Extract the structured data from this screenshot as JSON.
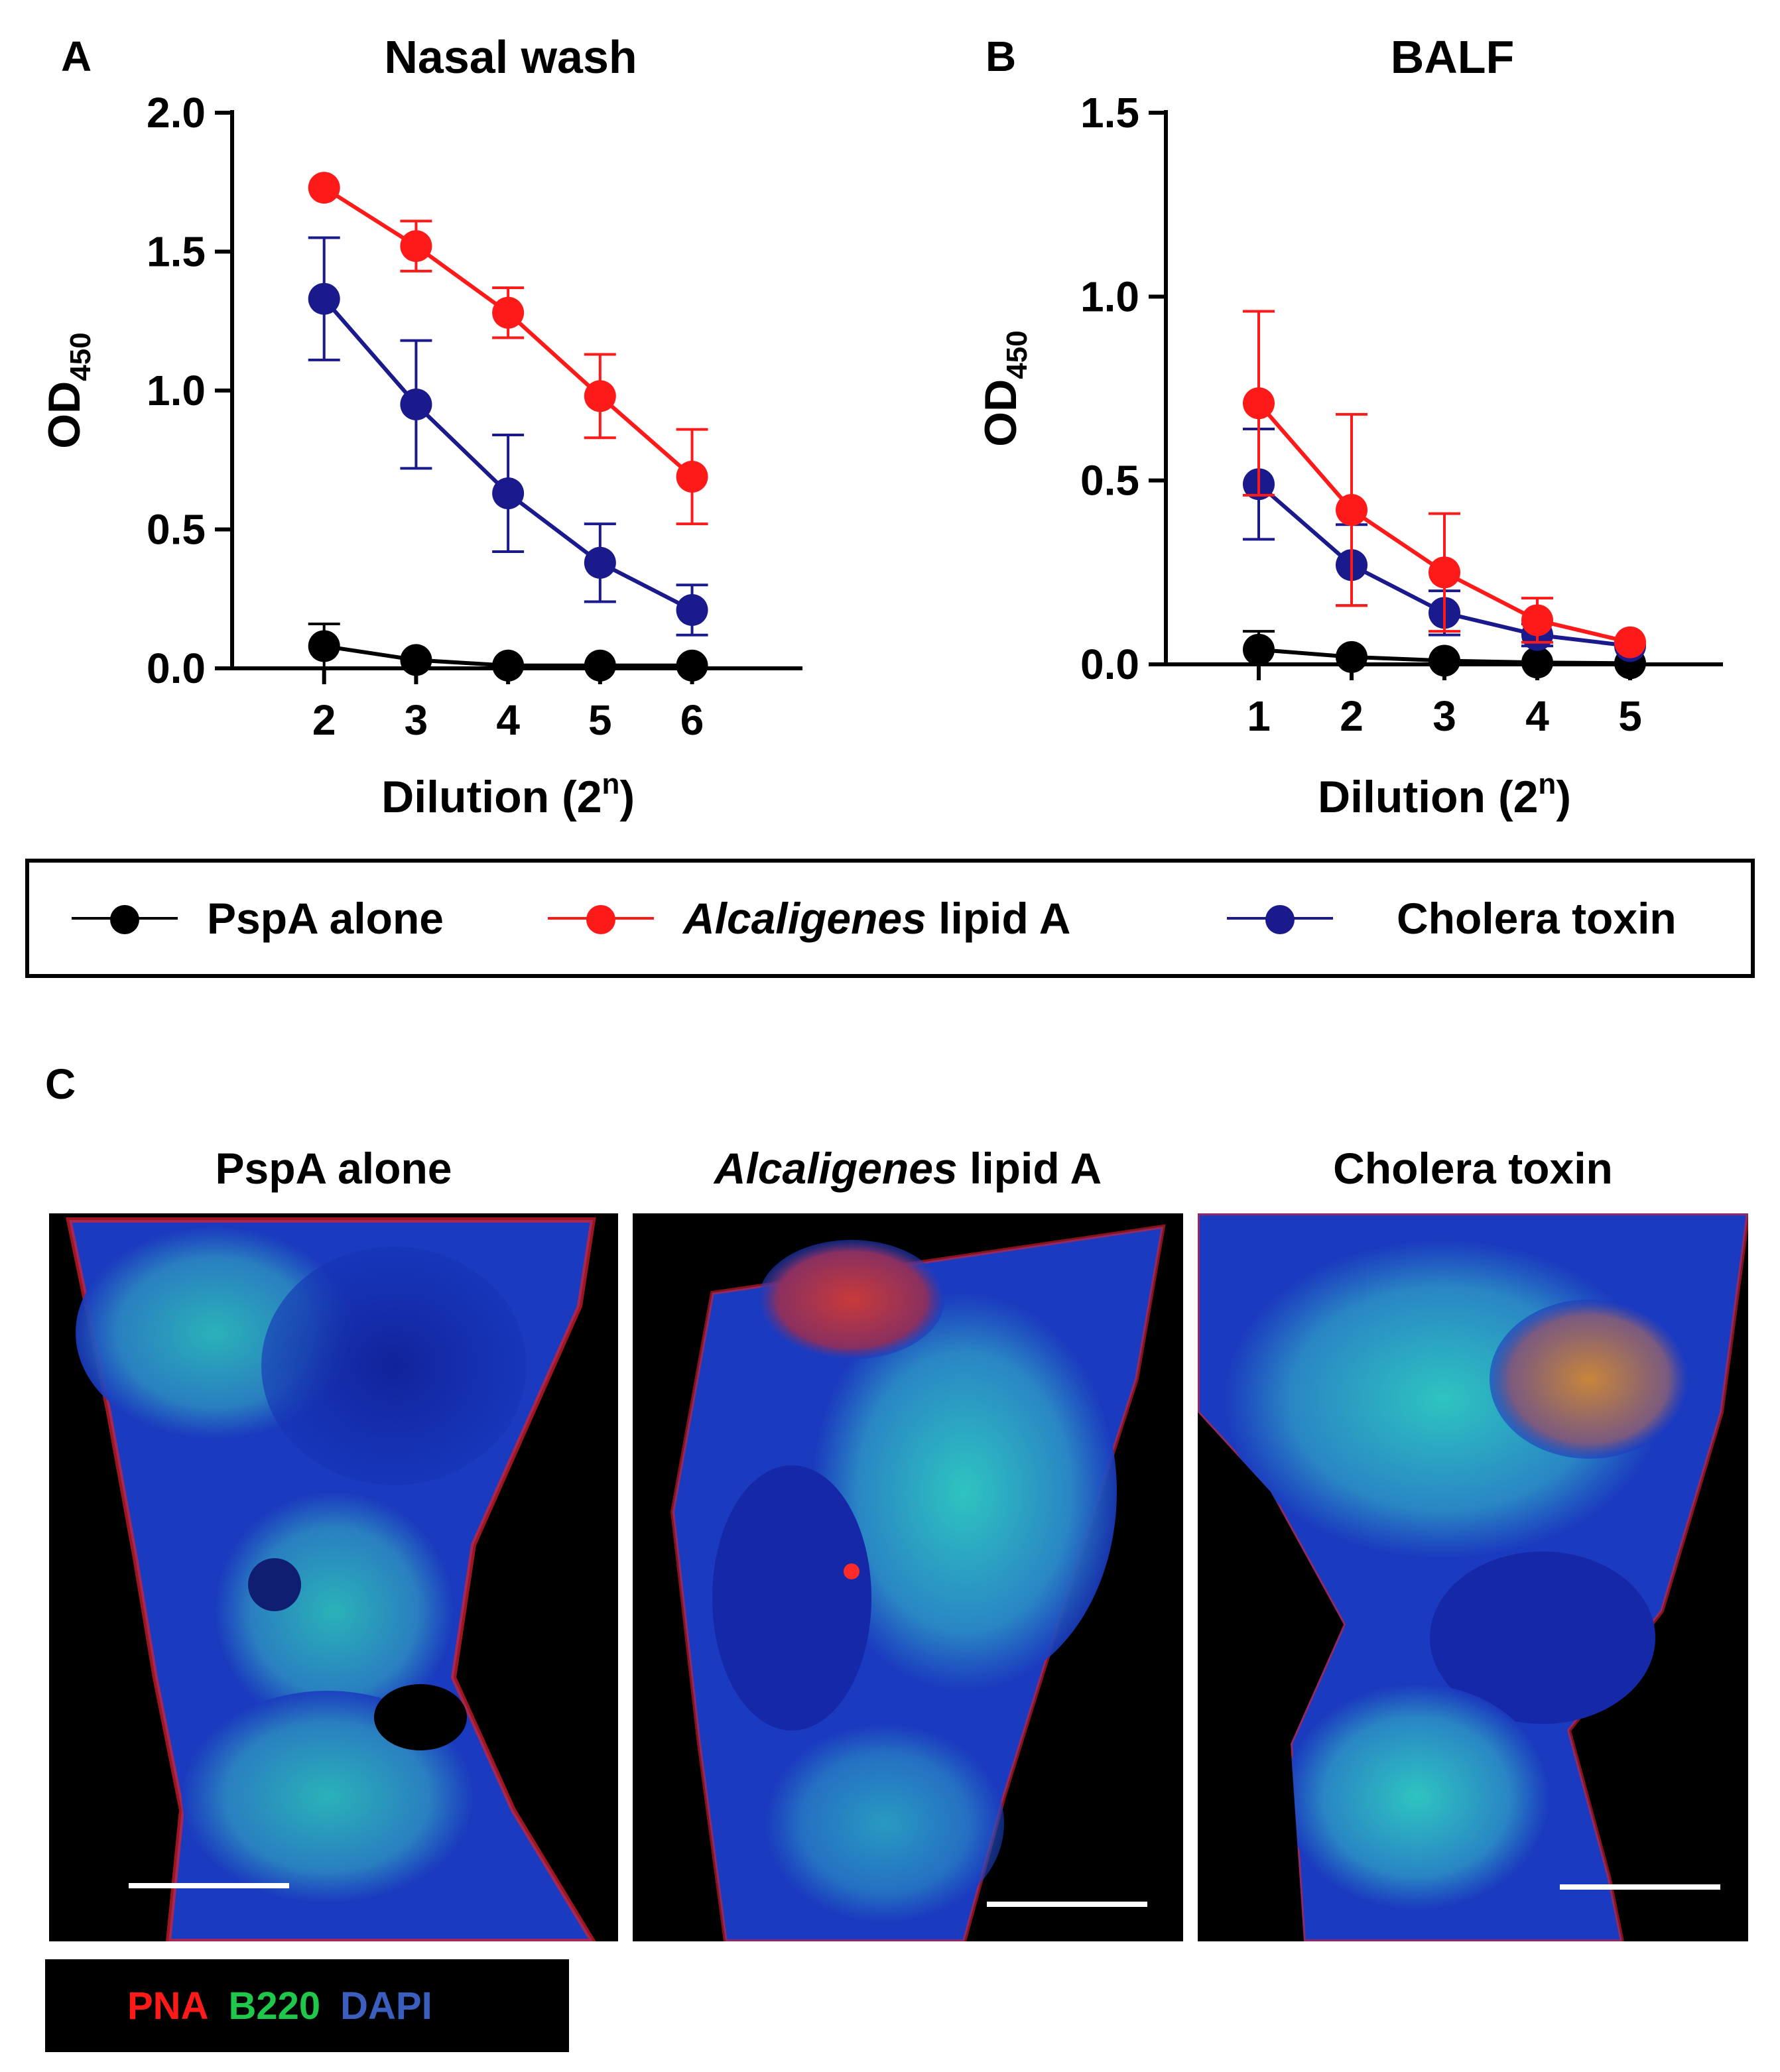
{
  "panels": {
    "a": {
      "letter": "A"
    },
    "b": {
      "letter": "B"
    },
    "c": {
      "letter": "C"
    }
  },
  "colors": {
    "pspa_alone": "#000000",
    "alcaligenes_lipid_a": "#ff1a1a",
    "cholera_toxin": "#1a1a8c",
    "pna": "#ff1a1a",
    "b220": "#1fc84a",
    "dapi": "#3a5fbf"
  },
  "legend": {
    "items": [
      {
        "key": "pspa_alone",
        "label": "PspA alone"
      },
      {
        "key": "alcaligenes_lipid_a",
        "label_italic": "Alcaligenes",
        "label_rest": " lipid A"
      },
      {
        "key": "cholera_toxin",
        "label": "Cholera toxin"
      }
    ]
  },
  "chart_data": [
    {
      "type": "line",
      "panel": "A",
      "title": "Nasal wash",
      "ylabel": "OD",
      "ylabel_sub": "450",
      "xlabel": "Dilution (2",
      "xlabel_sup": "n",
      "xlabel_end": ")",
      "x": [
        2,
        3,
        4,
        5,
        6
      ],
      "xlim": [
        1,
        7.2
      ],
      "ylim": [
        0,
        2.0
      ],
      "yticks": [
        0.0,
        0.5,
        1.0,
        1.5,
        2.0
      ],
      "ytick_labels": [
        "0.0",
        "0.5",
        "1.0",
        "1.5",
        "2.0"
      ],
      "xtick_labels": [
        "2",
        "3",
        "4",
        "5",
        "6"
      ],
      "series": [
        {
          "name": "PspA alone",
          "key": "pspa_alone",
          "values": [
            0.08,
            0.03,
            0.01,
            0.01,
            0.01
          ],
          "errors": [
            0.08,
            0.0,
            0.0,
            0.0,
            0.0
          ]
        },
        {
          "name": "Alcaligenes lipid A",
          "key": "alcaligenes_lipid_a",
          "values": [
            1.73,
            1.52,
            1.28,
            0.98,
            0.69
          ],
          "errors": [
            0.0,
            0.09,
            0.09,
            0.15,
            0.17
          ]
        },
        {
          "name": "Cholera toxin",
          "key": "cholera_toxin",
          "values": [
            1.33,
            0.95,
            0.63,
            0.38,
            0.21
          ],
          "errors": [
            0.22,
            0.23,
            0.21,
            0.14,
            0.09
          ]
        }
      ]
    },
    {
      "type": "line",
      "panel": "B",
      "title": "BALF",
      "ylabel": "OD",
      "ylabel_sub": "450",
      "xlabel": "Dilution (2",
      "xlabel_sup": "n",
      "xlabel_end": ")",
      "x": [
        1,
        2,
        3,
        4,
        5
      ],
      "xlim": [
        0,
        6.0
      ],
      "ylim": [
        0,
        1.5
      ],
      "yticks": [
        0.0,
        0.5,
        1.0,
        1.5
      ],
      "ytick_labels": [
        "0.0",
        "0.5",
        "1.0",
        "1.5"
      ],
      "xtick_labels": [
        "1",
        "2",
        "3",
        "4",
        "5"
      ],
      "series": [
        {
          "name": "PspA alone",
          "key": "pspa_alone",
          "values": [
            0.04,
            0.02,
            0.01,
            0.005,
            0.003
          ],
          "errors": [
            0.05,
            0.0,
            0.0,
            0.0,
            0.0
          ]
        },
        {
          "name": "Alcaligenes lipid A",
          "key": "alcaligenes_lipid_a",
          "values": [
            0.71,
            0.42,
            0.25,
            0.12,
            0.06
          ],
          "errors": [
            0.25,
            0.26,
            0.16,
            0.06,
            0.0
          ]
        },
        {
          "name": "Cholera toxin",
          "key": "cholera_toxin",
          "values": [
            0.49,
            0.27,
            0.14,
            0.08,
            0.05
          ],
          "errors": [
            0.15,
            0.11,
            0.06,
            0.03,
            0.0
          ]
        }
      ]
    }
  ],
  "micrographs": {
    "titles": [
      {
        "label": "PspA alone"
      },
      {
        "label_italic": "Alcaligenes",
        "label_rest": " lipid A"
      },
      {
        "label": "Cholera toxin"
      }
    ]
  },
  "stain_legend": {
    "pna": "PNA",
    "b220": "B220",
    "dapi": "DAPI"
  }
}
